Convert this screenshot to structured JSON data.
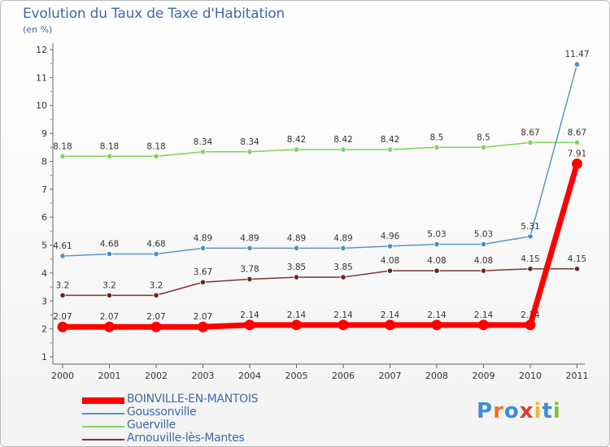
{
  "title": "Evolution du Taux de Taxe d'Habitation",
  "unit": "(en %)",
  "logo": "Proxiti",
  "chart_data": {
    "type": "line",
    "x": [
      "2000",
      "2001",
      "2002",
      "2003",
      "2004",
      "2005",
      "2006",
      "2007",
      "2008",
      "2009",
      "2010",
      "2011"
    ],
    "ylim": [
      1,
      12
    ],
    "yticks": [
      1,
      2,
      3,
      4,
      5,
      6,
      7,
      8,
      9,
      10,
      11,
      12
    ],
    "grid": false,
    "legend_position": "bottom-left",
    "series": [
      {
        "name": "Guerville",
        "color": "#7ed35a",
        "marker": "#7ed35a",
        "width": 1.5,
        "values": [
          8.18,
          8.18,
          8.18,
          8.34,
          8.34,
          8.42,
          8.42,
          8.42,
          8.5,
          8.5,
          8.67,
          8.67
        ],
        "labels": [
          "8.18",
          "8.18",
          "8.18",
          "8.34",
          "8.34",
          "8.42",
          "8.42",
          "8.42",
          "8.5",
          "8.5",
          "8.67",
          "8.67"
        ]
      },
      {
        "name": "Goussonville",
        "color": "#5b95c9",
        "marker": "#4f8ec4",
        "width": 1.5,
        "values": [
          4.61,
          4.68,
          4.68,
          4.89,
          4.89,
          4.89,
          4.89,
          4.96,
          5.03,
          5.03,
          5.31,
          11.47
        ],
        "labels": [
          "4.61",
          "4.68",
          "4.68",
          "4.89",
          "4.89",
          "4.89",
          "4.89",
          "4.96",
          "5.03",
          "5.03",
          "5.31",
          "11.47"
        ]
      },
      {
        "name": "Arnouville-lès-Mantes",
        "color": "#7a3535",
        "marker": "#6b2525",
        "width": 1.5,
        "values": [
          3.2,
          3.2,
          3.2,
          3.67,
          3.78,
          3.85,
          3.85,
          4.08,
          4.08,
          4.08,
          4.15,
          4.15
        ],
        "labels": [
          "3.2",
          "3.2",
          "3.2",
          "3.67",
          "3.78",
          "3.85",
          "3.85",
          "4.08",
          "4.08",
          "4.08",
          "4.15",
          "4.15"
        ]
      },
      {
        "name": "BOINVILLE-EN-MANTOIS",
        "color": "#ff0000",
        "marker": "#ff0000",
        "width": 7,
        "values": [
          2.07,
          2.07,
          2.07,
          2.07,
          2.14,
          2.14,
          2.14,
          2.14,
          2.14,
          2.14,
          2.14,
          7.91
        ],
        "labels": [
          "2.07",
          "2.07",
          "2.07",
          "2.07",
          "2.14",
          "2.14",
          "2.14",
          "2.14",
          "2.14",
          "2.14",
          "2.14",
          "7.91"
        ]
      }
    ],
    "legend_order": [
      "BOINVILLE-EN-MANTOIS",
      "Goussonville",
      "Guerville",
      "Arnouville-lès-Mantes"
    ]
  }
}
